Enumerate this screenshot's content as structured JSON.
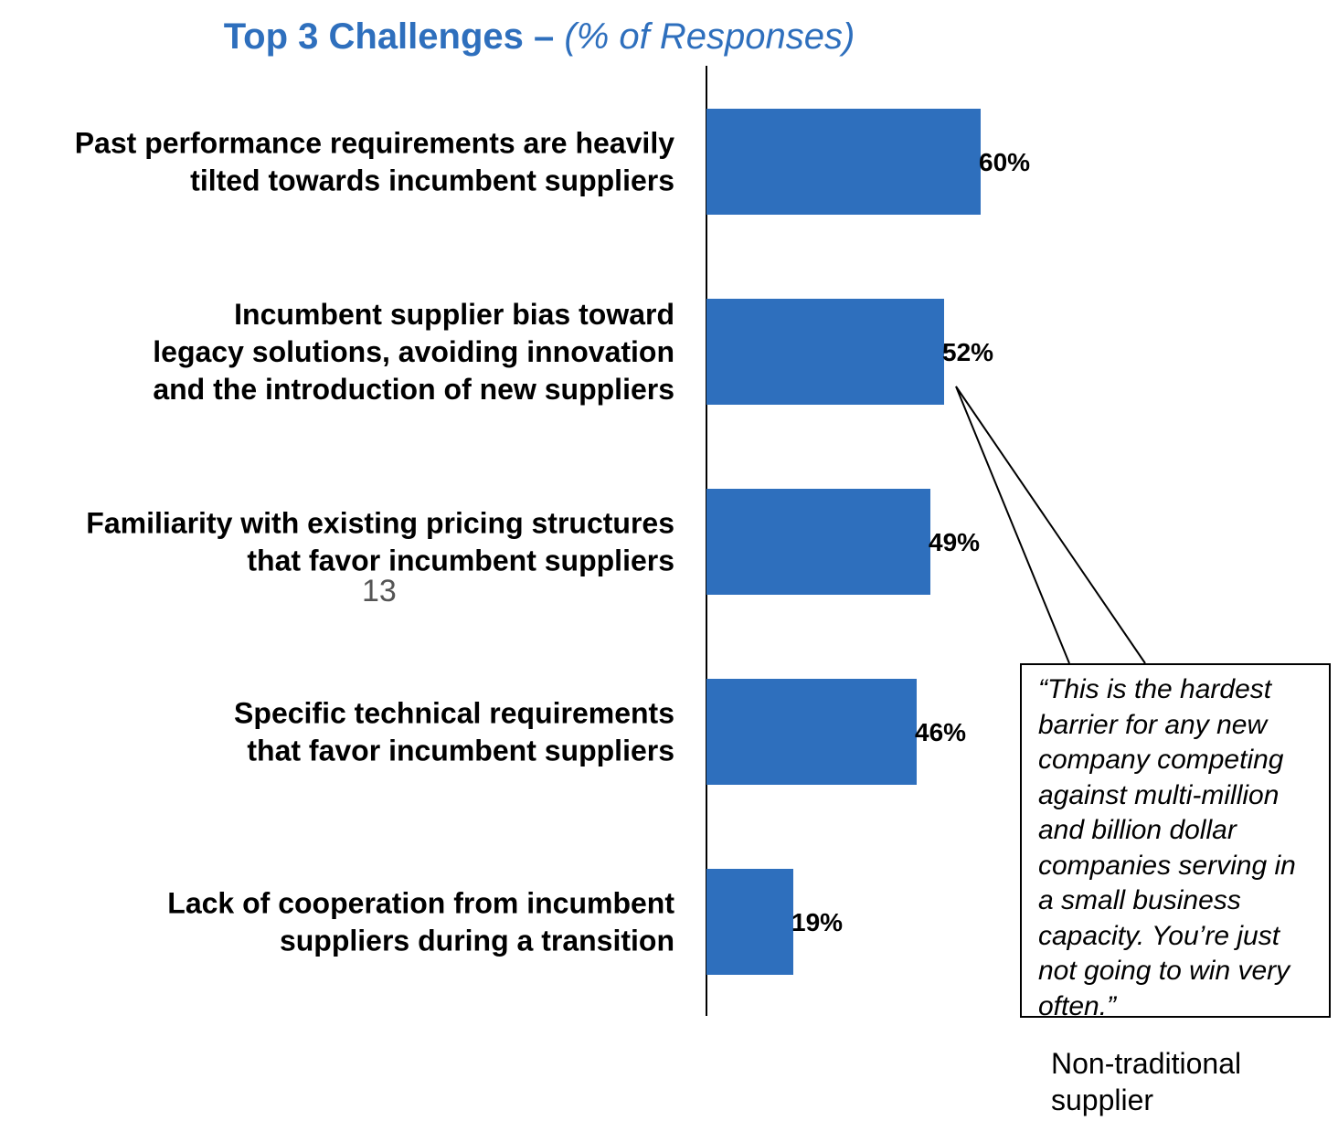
{
  "title": {
    "main": "Top 3 Challenges – ",
    "sub": "(% of Responses)"
  },
  "page_number": "13",
  "callout": {
    "quote": "“This is the hardest barrier for any new company competing against multi-million and billion dollar companies serving in a small business capacity. You’re just not going to win very often.”",
    "source": "Non-traditional supplier"
  },
  "colors": {
    "bar": "#2E6FBD",
    "title": "#2E6FBD"
  },
  "chart_data": {
    "type": "bar",
    "orientation": "horizontal",
    "title": "Top 3 Challenges – (% of Responses)",
    "categories": [
      [
        "Past performance requirements are heavily",
        "tilted towards incumbent suppliers"
      ],
      [
        "Incumbent supplier bias toward",
        "legacy solutions, avoiding innovation",
        "and the introduction of new suppliers"
      ],
      [
        "Familiarity with existing pricing structures",
        "that favor incumbent suppliers"
      ],
      [
        "Specific technical requirements",
        "that favor incumbent suppliers"
      ],
      [
        "Lack of cooperation from incumbent",
        "suppliers during a transition"
      ]
    ],
    "values": [
      60,
      52,
      49,
      46,
      19
    ],
    "value_labels": [
      "60%",
      "52%",
      "49%",
      "46%",
      "19%"
    ],
    "unit": "%",
    "xlim": [
      0,
      100
    ],
    "grid": false,
    "legend": "none"
  }
}
